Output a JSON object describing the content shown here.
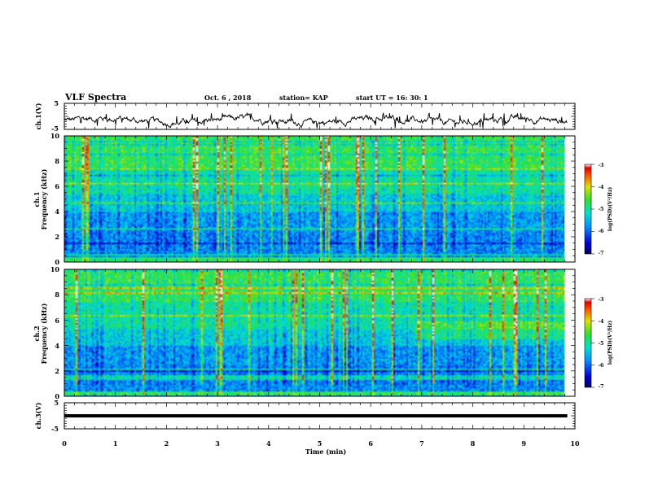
{
  "header": {
    "title": "VLF Spectra",
    "date": "Oct. 6  , 2018",
    "station": "station= KAP",
    "start": "start  UT =   16: 30: 1"
  },
  "chart_data": [
    {
      "type": "line",
      "panel": "ch1-waveform",
      "ylabel": "ch.1(V)",
      "yticks": [
        "5",
        "-5"
      ],
      "ylim": [
        -5,
        5
      ],
      "xlim": [
        0,
        10
      ],
      "data_end_x": 9.85,
      "description_of_trace": "noisy waveform fluctuating roughly between -4 and 1 V"
    },
    {
      "type": "heatmap",
      "panel": "ch1-spectrogram",
      "ylabel": "ch.1",
      "ylabel2": "Frequency  (kHz)",
      "yticks": [
        "10",
        "8",
        "6",
        "4",
        "2",
        "0"
      ],
      "ylim": [
        0,
        10
      ],
      "xlim": [
        0,
        10
      ],
      "colorbar": {
        "ticks": [
          "-3",
          "-4",
          "-5",
          "-6",
          "-7"
        ],
        "label": "log(PSD)(V²/Hz)",
        "range": [
          -7,
          -3
        ]
      }
    },
    {
      "type": "heatmap",
      "panel": "ch2-spectrogram",
      "ylabel": "ch.2",
      "ylabel2": "Frequency  (kHz)",
      "yticks": [
        "10",
        "8",
        "6",
        "4",
        "2",
        "0"
      ],
      "ylim": [
        0,
        10
      ],
      "xlim": [
        0,
        10
      ],
      "colorbar": {
        "ticks": [
          "-3",
          "-4",
          "-5",
          "-6",
          "-7"
        ],
        "label": "log(PSD)(V²/Hz)",
        "range": [
          -7,
          -3
        ]
      }
    },
    {
      "type": "line",
      "panel": "ch3-waveform",
      "ylabel": "ch.3(V)",
      "yticks": [
        "5",
        "-5"
      ],
      "ylim": [
        -5,
        5
      ],
      "xlim": [
        0,
        10
      ],
      "constant_value": 0
    }
  ],
  "xaxis": {
    "label": "Time  (min)",
    "ticks": [
      "0",
      "1",
      "2",
      "3",
      "4",
      "5",
      "6",
      "7",
      "8",
      "9",
      "10"
    ]
  }
}
